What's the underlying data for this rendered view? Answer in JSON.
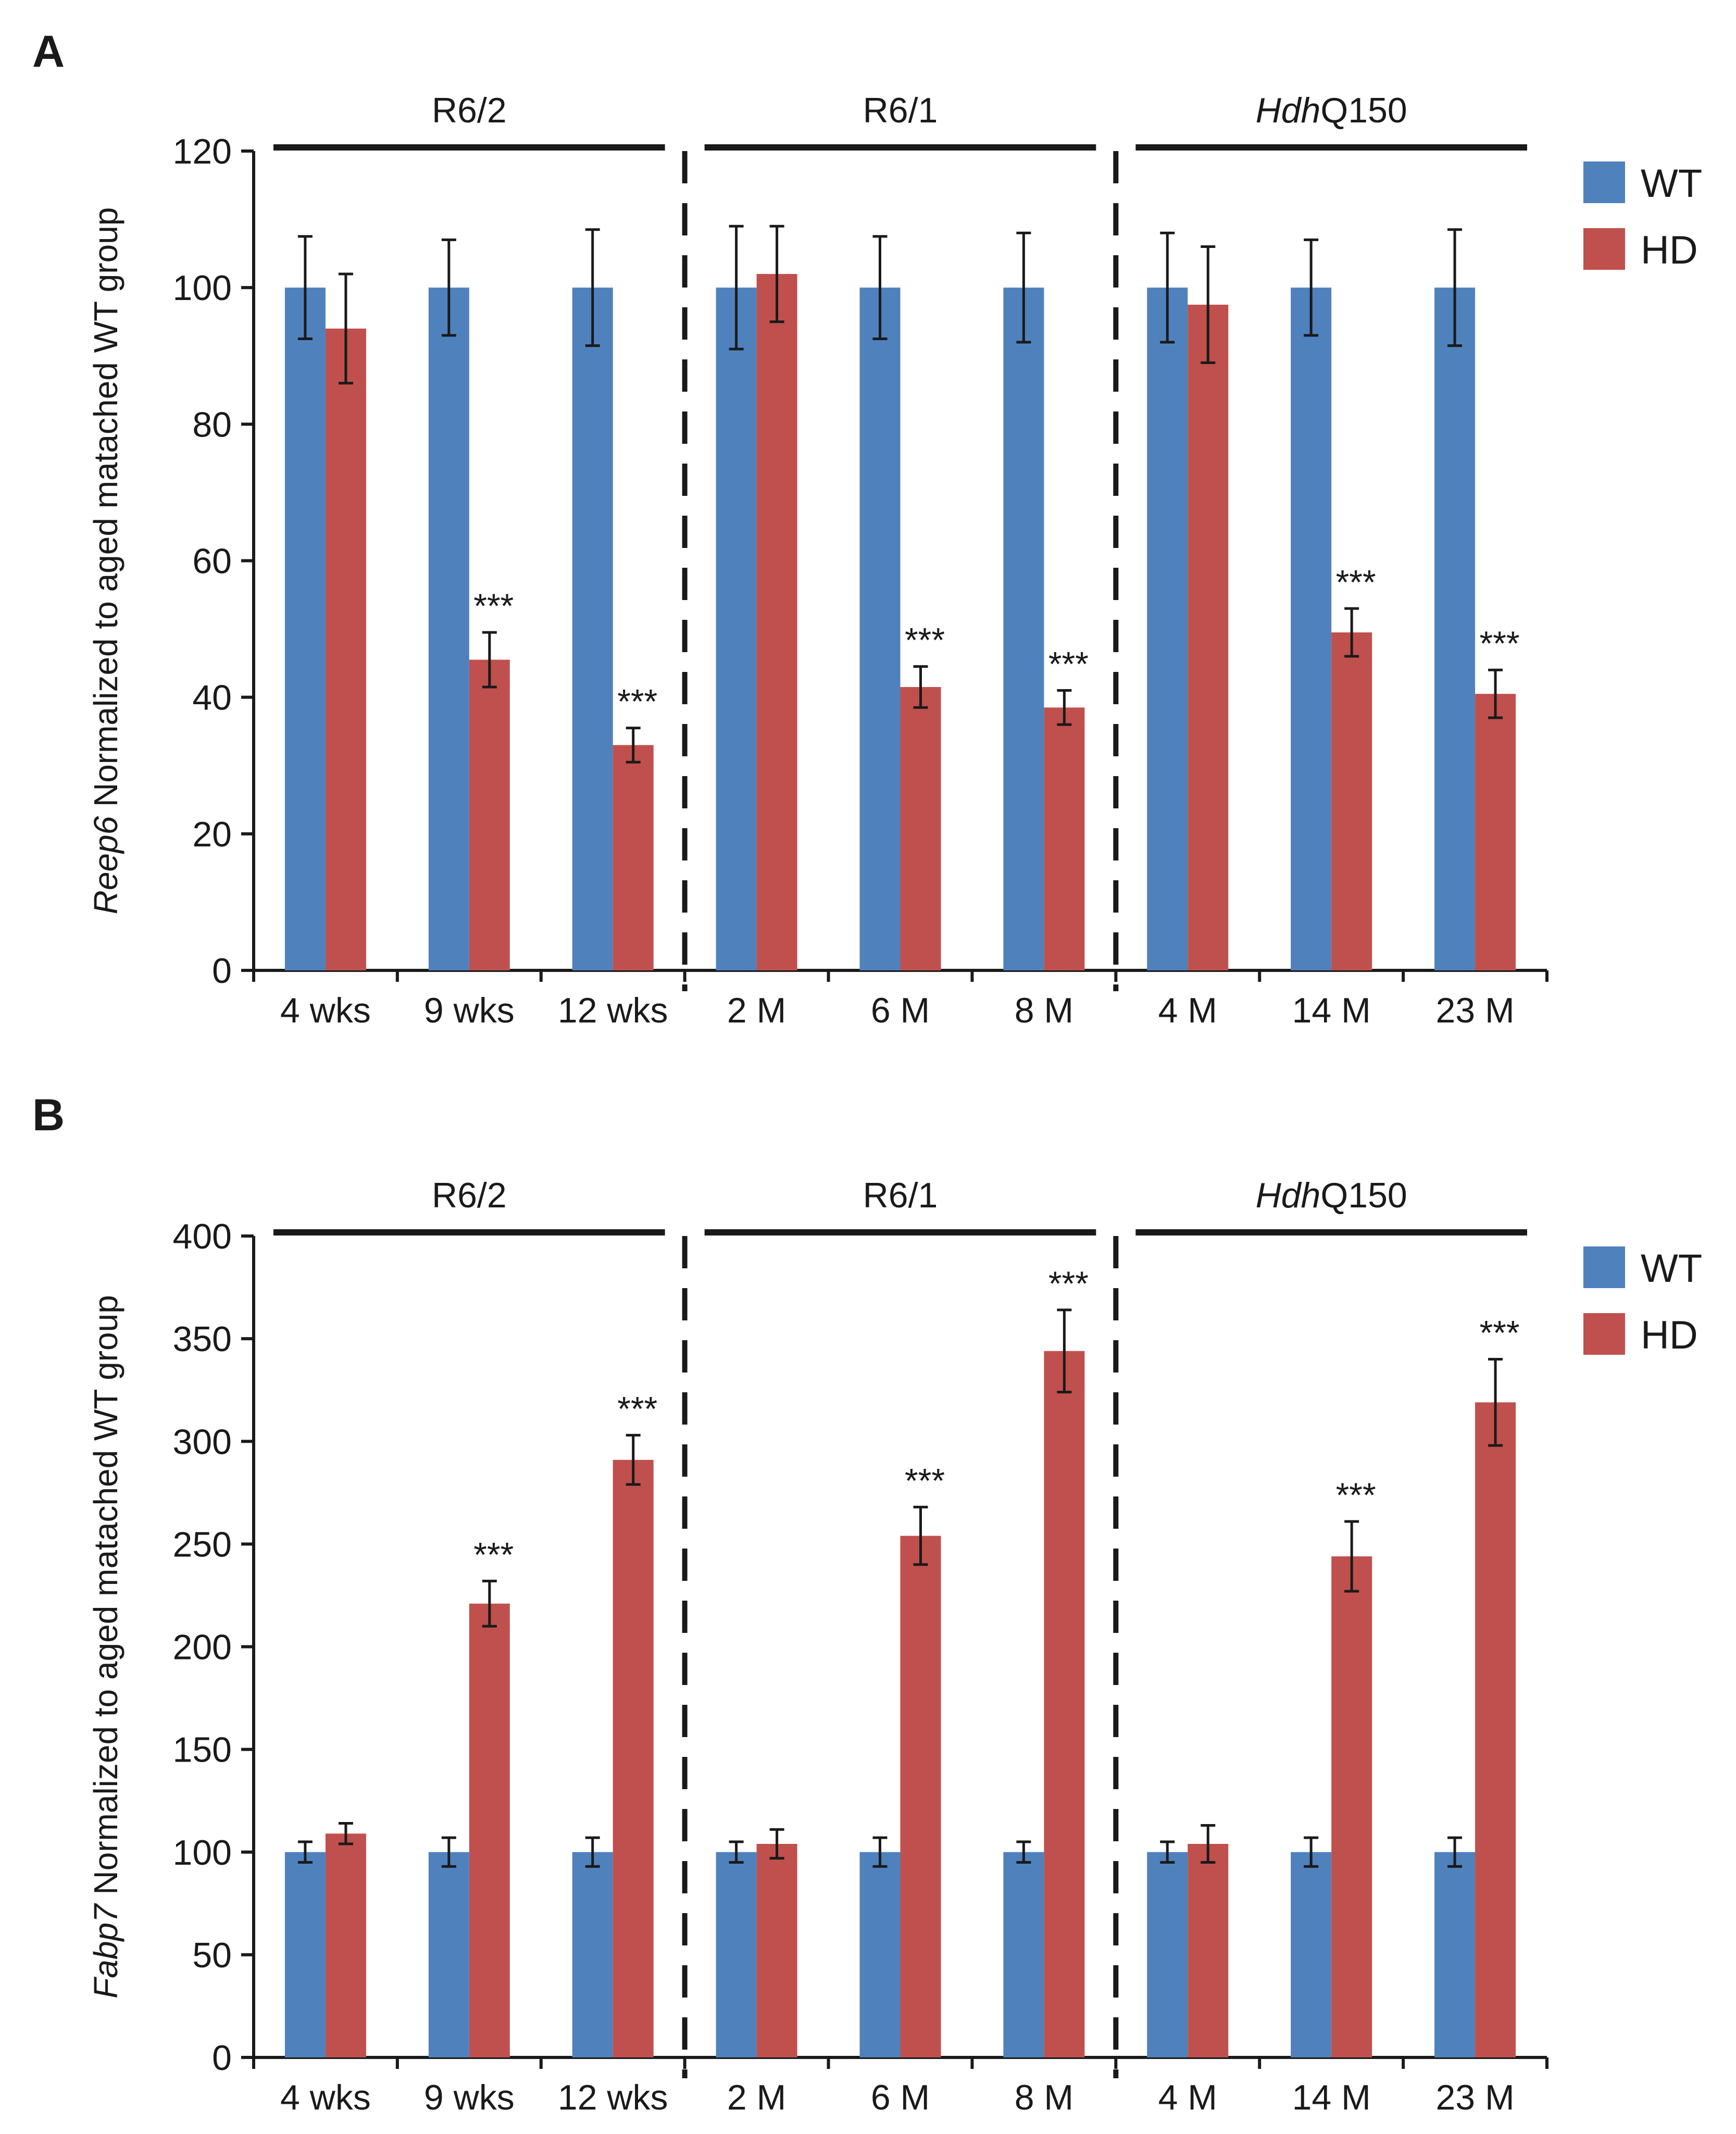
{
  "colors": {
    "wt": "#4f81bd",
    "hd": "#c0504d",
    "ink": "#1a1a1a"
  },
  "chart_data": [
    {
      "type": "bar",
      "panel": "A",
      "ylabel_gene": "Reep6",
      "ylabel_rest": " Normalized to aged matached WT group",
      "ylim": [
        0,
        120
      ],
      "yticks": [
        0,
        20,
        40,
        60,
        80,
        100,
        120
      ],
      "categories": [
        "4 wks",
        "9 wks",
        "12 wks",
        "2 M",
        "6 M",
        "8 M",
        "4 M",
        "14 M",
        "23 M"
      ],
      "groups": [
        {
          "label": "R6/2",
          "italic_prefix": "",
          "start": 0,
          "end": 2
        },
        {
          "label": "R6/1",
          "italic_prefix": "",
          "start": 3,
          "end": 5
        },
        {
          "label": "Q150",
          "italic_prefix": "Hdh",
          "start": 6,
          "end": 8
        }
      ],
      "legend": [
        "WT",
        "HD"
      ],
      "series": [
        {
          "name": "WT",
          "values": [
            100,
            100,
            100,
            100,
            100,
            100,
            100,
            100,
            100
          ],
          "errors": [
            7.5,
            7,
            8.5,
            9,
            7.5,
            8,
            8,
            7,
            8.5
          ]
        },
        {
          "name": "HD",
          "values": [
            94,
            45.5,
            33,
            102,
            41.5,
            38.5,
            97.5,
            49.5,
            40.5
          ],
          "errors": [
            8,
            4,
            2.5,
            7,
            3,
            2.5,
            8.5,
            3.5,
            3.5
          ]
        }
      ],
      "significance": [
        "",
        "***",
        "***",
        "",
        "***",
        "***",
        "",
        "***",
        "***"
      ]
    },
    {
      "type": "bar",
      "panel": "B",
      "ylabel_gene": "Fabp7",
      "ylabel_rest": " Normalized to aged matached WT group",
      "ylim": [
        0,
        400
      ],
      "yticks": [
        0,
        50,
        100,
        150,
        200,
        250,
        300,
        350,
        400
      ],
      "categories": [
        "4 wks",
        "9 wks",
        "12 wks",
        "2 M",
        "6 M",
        "8 M",
        "4 M",
        "14 M",
        "23 M"
      ],
      "groups": [
        {
          "label": "R6/2",
          "italic_prefix": "",
          "start": 0,
          "end": 2
        },
        {
          "label": "R6/1",
          "italic_prefix": "",
          "start": 3,
          "end": 5
        },
        {
          "label": "Q150",
          "italic_prefix": "Hdh",
          "start": 6,
          "end": 8
        }
      ],
      "legend": [
        "WT",
        "HD"
      ],
      "series": [
        {
          "name": "WT",
          "values": [
            100,
            100,
            100,
            100,
            100,
            100,
            100,
            100,
            100
          ],
          "errors": [
            5,
            7,
            7,
            5,
            7,
            5,
            5,
            7,
            7
          ]
        },
        {
          "name": "HD",
          "values": [
            109,
            221,
            291,
            104,
            254,
            344,
            104,
            244,
            319
          ],
          "errors": [
            5,
            11,
            12,
            7,
            14,
            20,
            9,
            17,
            21
          ]
        }
      ],
      "significance": [
        "",
        "***",
        "***",
        "",
        "***",
        "***",
        "",
        "***",
        "***"
      ]
    }
  ]
}
